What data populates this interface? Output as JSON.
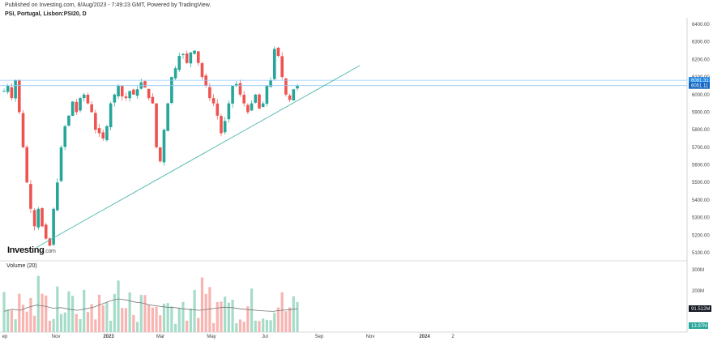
{
  "header": {
    "published": "Published on Investing.com, 8/Aug/2023 - 7:49:23 GMT, Powered by TradingView.",
    "symbol": "PSI, Portugal, Lisbon:PSI20, D"
  },
  "logo": {
    "main": "Investing",
    "suffix": ".com"
  },
  "volume_title": "Volume (20)",
  "price_axis": {
    "ticks": [
      "6400.00",
      "6300.00",
      "6200.00",
      "6100.00",
      "6000.00",
      "5900.00",
      "5800.00",
      "5700.00",
      "5600.00",
      "5500.00",
      "5400.00",
      "5300.00",
      "5200.00",
      "5100.00"
    ],
    "badges": [
      {
        "text": "6081.31",
        "color": "#1e88e5"
      },
      {
        "text": "6051.11",
        "color": "#1565c0"
      }
    ]
  },
  "volume_axis": {
    "ticks": [
      "300M",
      "200M"
    ],
    "badges": [
      {
        "text": "91.512M",
        "color": "#131722"
      },
      {
        "text": "13.97M",
        "color": "#26a69a"
      }
    ]
  },
  "time_axis": {
    "labels": [
      "ep",
      "Nov",
      "2023",
      "Mar",
      "May",
      "Jul",
      "Sep",
      "Nov",
      "2024",
      "2"
    ]
  },
  "colors": {
    "up": "#26a69a",
    "down": "#ef5350",
    "trendline": "#4db6ac",
    "hline": "#90caf9",
    "vol_ma": "#777777"
  },
  "chart_data": {
    "type": "candlestick",
    "title": "PSI, Portugal, Lisbon:PSI20, D",
    "ylim": [
      5050,
      6450
    ],
    "x": [
      "ep",
      "Nov",
      "2023",
      "Mar",
      "May",
      "Jul",
      "Sep",
      "Nov",
      "2024",
      "2"
    ],
    "close_path": [
      6020,
      6050,
      5980,
      6080,
      5900,
      5700,
      5500,
      5350,
      5250,
      5350,
      5250,
      5180,
      5140,
      5350,
      5500,
      5700,
      5820,
      5880,
      5960,
      5900,
      5980,
      6000,
      5950,
      5900,
      5800,
      5780,
      5750,
      5820,
      5950,
      6000,
      6050,
      5990,
      5980,
      6020,
      6000,
      6030,
      6070,
      6040,
      5980,
      5950,
      5700,
      5620,
      5800,
      5950,
      6100,
      6150,
      6220,
      6230,
      6180,
      6240,
      6250,
      6180,
      6100,
      6050,
      5980,
      5950,
      5880,
      5780,
      5850,
      5950,
      6050,
      6060,
      6000,
      5950,
      5900,
      5950,
      6000,
      5920,
      5950,
      6050,
      6080,
      6260,
      6220,
      6100,
      6000,
      5970,
      6030,
      6050
    ],
    "price_lines": [
      6081.31,
      6051.11
    ],
    "volume_ma_approx": [
      100,
      110,
      105,
      120,
      130,
      125,
      115,
      118,
      110,
      105,
      112,
      120,
      135,
      150,
      160,
      155,
      145,
      140,
      130,
      125,
      120,
      118,
      112,
      108,
      105,
      110,
      115,
      120,
      118,
      112,
      108,
      105,
      102,
      100,
      105,
      108,
      112
    ],
    "volume_ylim": [
      0,
      320
    ]
  }
}
